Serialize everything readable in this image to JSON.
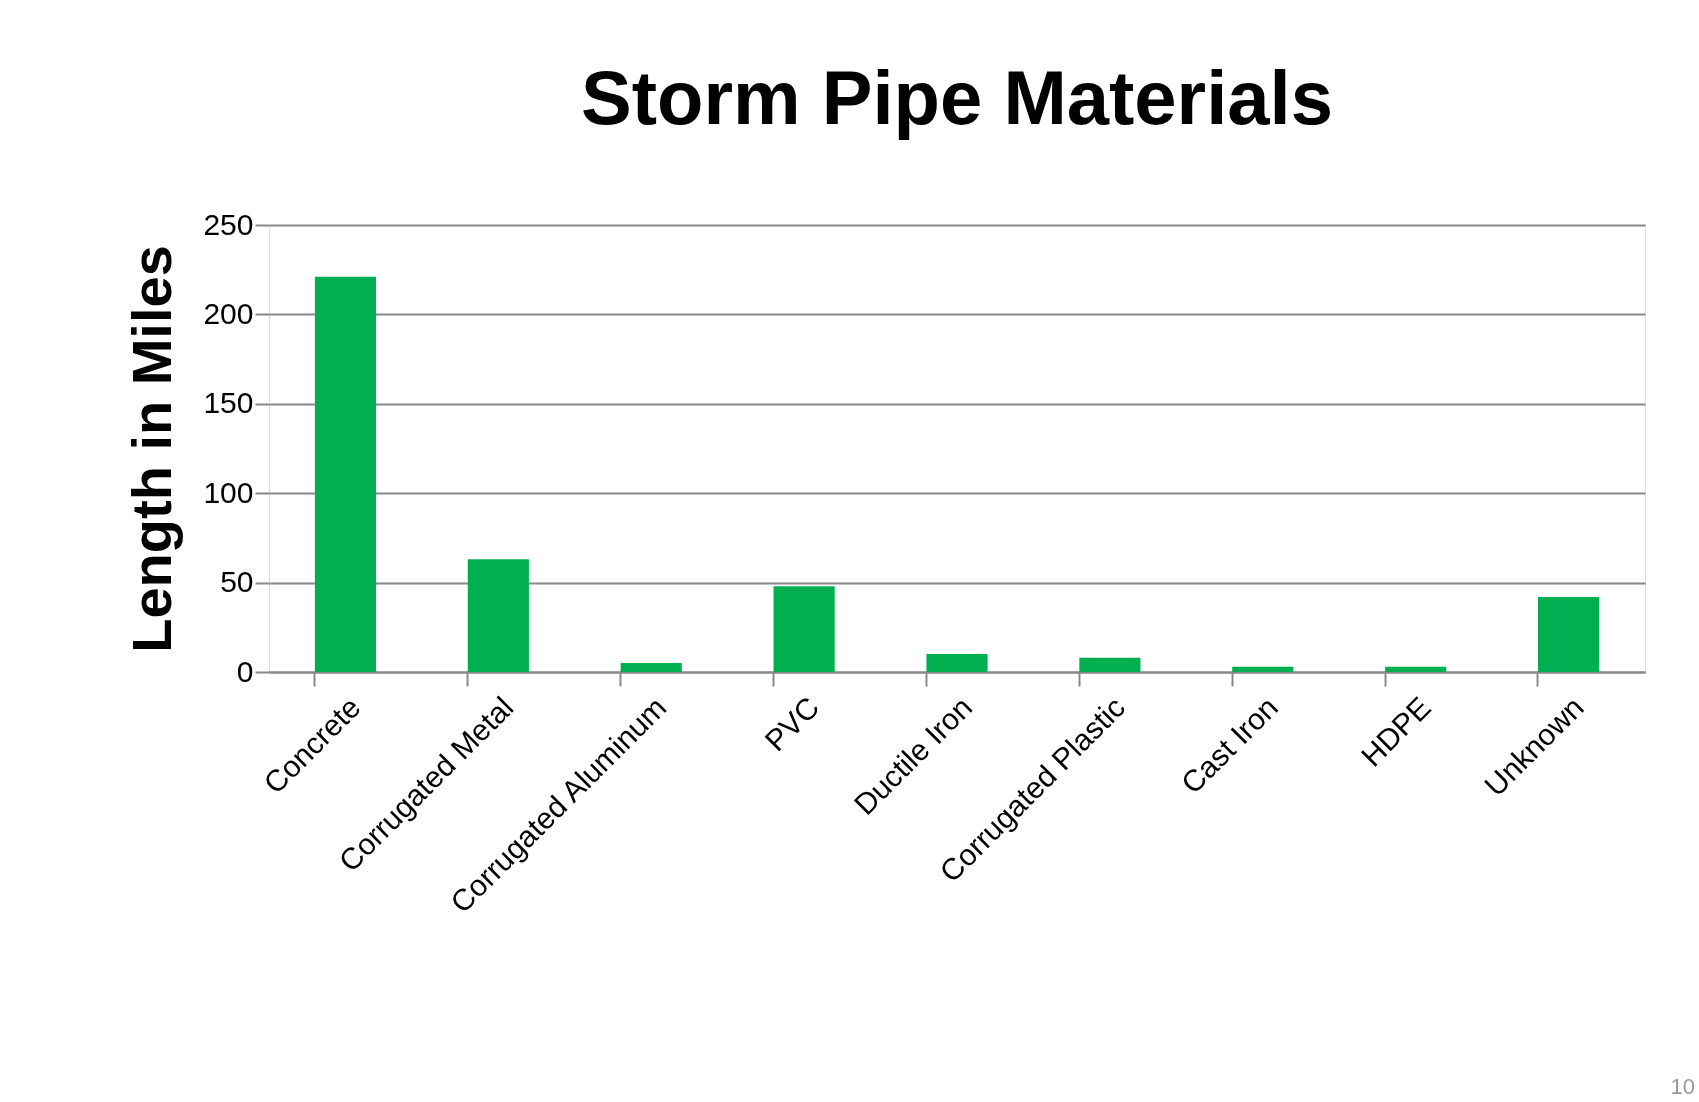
{
  "chart_data": {
    "type": "bar",
    "title": "Storm Pipe Materials",
    "ylabel": "Length in Miles",
    "categories": [
      "Concrete",
      "Corrugated Metal",
      "Corrugated Aluminum",
      "PVC",
      "Ductile Iron",
      "Corrugated Plastic",
      "Cast Iron",
      "HDPE",
      "Unknown"
    ],
    "values": [
      221,
      63,
      5,
      48,
      10,
      8,
      3,
      3,
      42
    ],
    "color": "#00b050",
    "ylim": [
      0,
      250
    ],
    "yticks": [
      0,
      50,
      100,
      150,
      200,
      250
    ],
    "grid": "y",
    "annotations": [
      "10"
    ]
  }
}
